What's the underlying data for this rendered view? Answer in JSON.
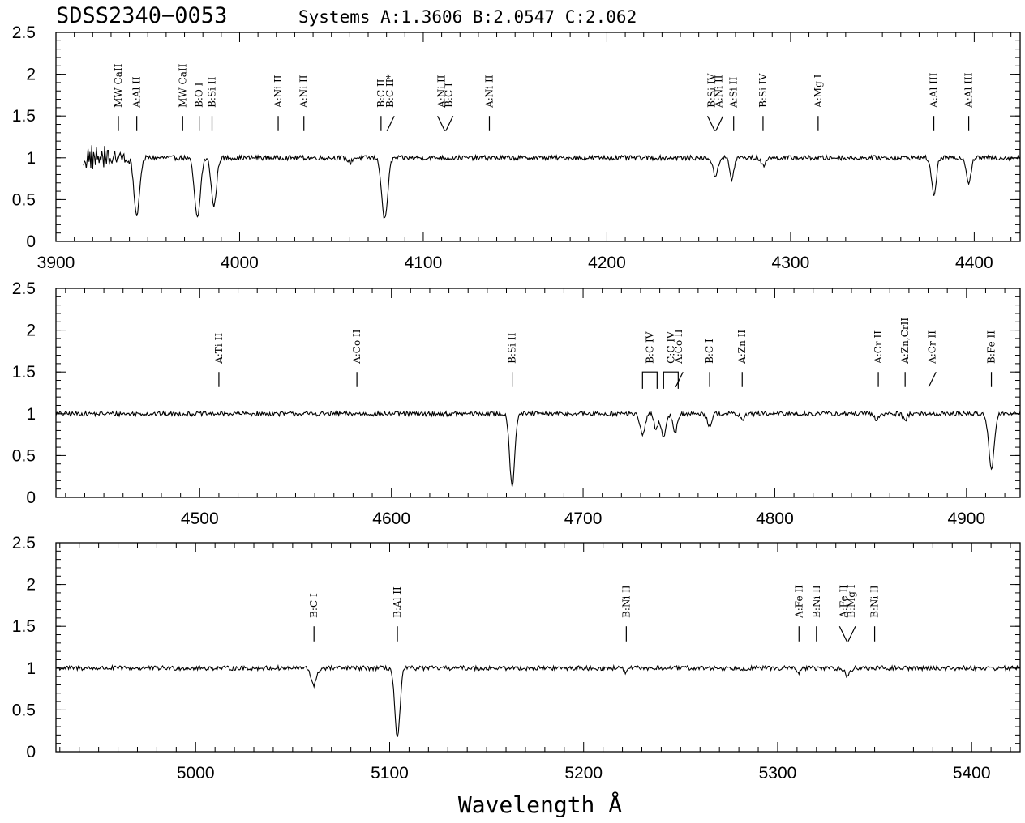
{
  "title": "SDSS2340−0053",
  "subtitle": "Systems A:1.3606 B:2.0547 C:2.062",
  "xlabel": "Wavelength Å",
  "chart_data": [
    {
      "type": "line",
      "panel": 1,
      "xlim": [
        3900,
        4425
      ],
      "ylim": [
        0,
        2.5
      ],
      "xticks": [
        3900,
        4000,
        4100,
        4200,
        4300,
        4400
      ],
      "yticks": [
        0,
        0.5,
        1,
        1.5,
        2,
        2.5
      ],
      "xstart": 3915,
      "absorptions": [
        {
          "x": 3944,
          "depth": 0.7,
          "w": 1.5
        },
        {
          "x": 3977,
          "depth": 0.72,
          "w": 1.6
        },
        {
          "x": 3986,
          "depth": 0.58,
          "w": 1.4
        },
        {
          "x": 4079,
          "depth": 0.74,
          "w": 1.6
        },
        {
          "x": 4060,
          "depth": 0.06,
          "w": 1.0
        },
        {
          "x": 4259,
          "depth": 0.22,
          "w": 1.3
        },
        {
          "x": 4268,
          "depth": 0.26,
          "w": 1.1
        },
        {
          "x": 4285,
          "depth": 0.1,
          "w": 1.1
        },
        {
          "x": 4378,
          "depth": 0.44,
          "w": 1.3
        },
        {
          "x": 4397,
          "depth": 0.3,
          "w": 1.2
        }
      ],
      "markers": [
        {
          "label": "MW CaII",
          "x": 3934,
          "style": "line"
        },
        {
          "label": "A:Al II",
          "x": 3944,
          "style": "line"
        },
        {
          "label": "MW CaII",
          "x": 3969,
          "style": "line"
        },
        {
          "label": "B:O I",
          "x": 3978,
          "style": "line"
        },
        {
          "label": "B:Si II",
          "x": 3985,
          "style": "line"
        },
        {
          "label": "A:Ni II",
          "x": 4021,
          "style": "line"
        },
        {
          "label": "A:Ni II",
          "x": 4035,
          "style": "line"
        },
        {
          "label": "B:C II",
          "x": 4077,
          "style": "line"
        },
        {
          "label": "B:C II*",
          "x": 4082,
          "style": "slash-r"
        },
        {
          "label": "A:Ni II",
          "x": 4110,
          "style": "slash-l"
        },
        {
          "label": "B:C I",
          "x": 4114,
          "style": "slash-r"
        },
        {
          "label": "A:Ni II",
          "x": 4136,
          "style": "line"
        },
        {
          "label": "B:Si IV",
          "x": 4257,
          "style": "slash-l"
        },
        {
          "label": "A:Ni II",
          "x": 4261,
          "style": "slash-r"
        },
        {
          "label": "A:Si II",
          "x": 4269,
          "style": "line"
        },
        {
          "label": "B:Si IV",
          "x": 4285,
          "style": "line"
        },
        {
          "label": "A:Mg I",
          "x": 4315,
          "style": "line"
        },
        {
          "label": "A:Al III",
          "x": 4378,
          "style": "line"
        },
        {
          "label": "A:Al III",
          "x": 4397,
          "style": "line"
        }
      ]
    },
    {
      "type": "line",
      "panel": 2,
      "xlim": [
        4425,
        4928
      ],
      "ylim": [
        0,
        2.5
      ],
      "xticks": [
        4500,
        4600,
        4700,
        4800,
        4900
      ],
      "yticks": [
        0,
        0.5,
        1,
        1.5,
        2,
        2.5
      ],
      "xstart": 4425,
      "absorptions": [
        {
          "x": 4663,
          "depth": 0.86,
          "w": 1.3
        },
        {
          "x": 4731,
          "depth": 0.27,
          "w": 1.2
        },
        {
          "x": 4738,
          "depth": 0.18,
          "w": 1.0
        },
        {
          "x": 4742,
          "depth": 0.3,
          "w": 1.2
        },
        {
          "x": 4748,
          "depth": 0.22,
          "w": 1.1
        },
        {
          "x": 4766,
          "depth": 0.14,
          "w": 1.1
        },
        {
          "x": 4783,
          "depth": 0.08,
          "w": 1.0
        },
        {
          "x": 4853,
          "depth": 0.08,
          "w": 1.0
        },
        {
          "x": 4868,
          "depth": 0.07,
          "w": 1.0
        },
        {
          "x": 4913,
          "depth": 0.66,
          "w": 1.4
        }
      ],
      "markers": [
        {
          "label": "A:Ti II",
          "x": 4510,
          "style": "line"
        },
        {
          "label": "A:Co II",
          "x": 4582,
          "style": "line"
        },
        {
          "label": "B:Si II",
          "x": 4663,
          "style": "line"
        },
        {
          "label": "B:C IV",
          "x": 4731,
          "style": "bracket"
        },
        {
          "label": "C:C IV",
          "x": 4742,
          "style": "bracket"
        },
        {
          "label": "A:Co II",
          "x": 4750,
          "style": "slash-r"
        },
        {
          "label": "B:C I",
          "x": 4766,
          "style": "line"
        },
        {
          "label": "A:Zn II",
          "x": 4783,
          "style": "line"
        },
        {
          "label": "A:Cr II",
          "x": 4854,
          "style": "line"
        },
        {
          "label": "A:Zn,CrII",
          "x": 4868,
          "style": "line"
        },
        {
          "label": "A:Cr II",
          "x": 4882,
          "style": "slash-r"
        },
        {
          "label": "B:Fe II",
          "x": 4913,
          "style": "line"
        }
      ]
    },
    {
      "type": "line",
      "panel": 3,
      "xlim": [
        4928,
        5425
      ],
      "ylim": [
        0,
        2.5
      ],
      "xticks": [
        5000,
        5100,
        5200,
        5300,
        5400
      ],
      "yticks": [
        0,
        0.5,
        1,
        1.5,
        2,
        2.5
      ],
      "xstart": 4928,
      "absorptions": [
        {
          "x": 5061,
          "depth": 0.2,
          "w": 1.4
        },
        {
          "x": 5104,
          "depth": 0.85,
          "w": 1.3
        },
        {
          "x": 5222,
          "depth": 0.05,
          "w": 1.0
        },
        {
          "x": 5311,
          "depth": 0.05,
          "w": 1.0
        },
        {
          "x": 5336,
          "depth": 0.1,
          "w": 1.2
        }
      ],
      "markers": [
        {
          "label": "B:C I",
          "x": 5061,
          "style": "line"
        },
        {
          "label": "B:Al II",
          "x": 5104,
          "style": "line"
        },
        {
          "label": "B:Ni II",
          "x": 5222,
          "style": "line"
        },
        {
          "label": "A:Fe II",
          "x": 5311,
          "style": "line"
        },
        {
          "label": "B:Ni II",
          "x": 5320,
          "style": "line"
        },
        {
          "label": "A:Fe II",
          "x": 5334,
          "style": "slash-l"
        },
        {
          "label": "B:Mg I",
          "x": 5338,
          "style": "slash-r"
        },
        {
          "label": "B:Ni II",
          "x": 5350,
          "style": "line"
        }
      ]
    }
  ]
}
